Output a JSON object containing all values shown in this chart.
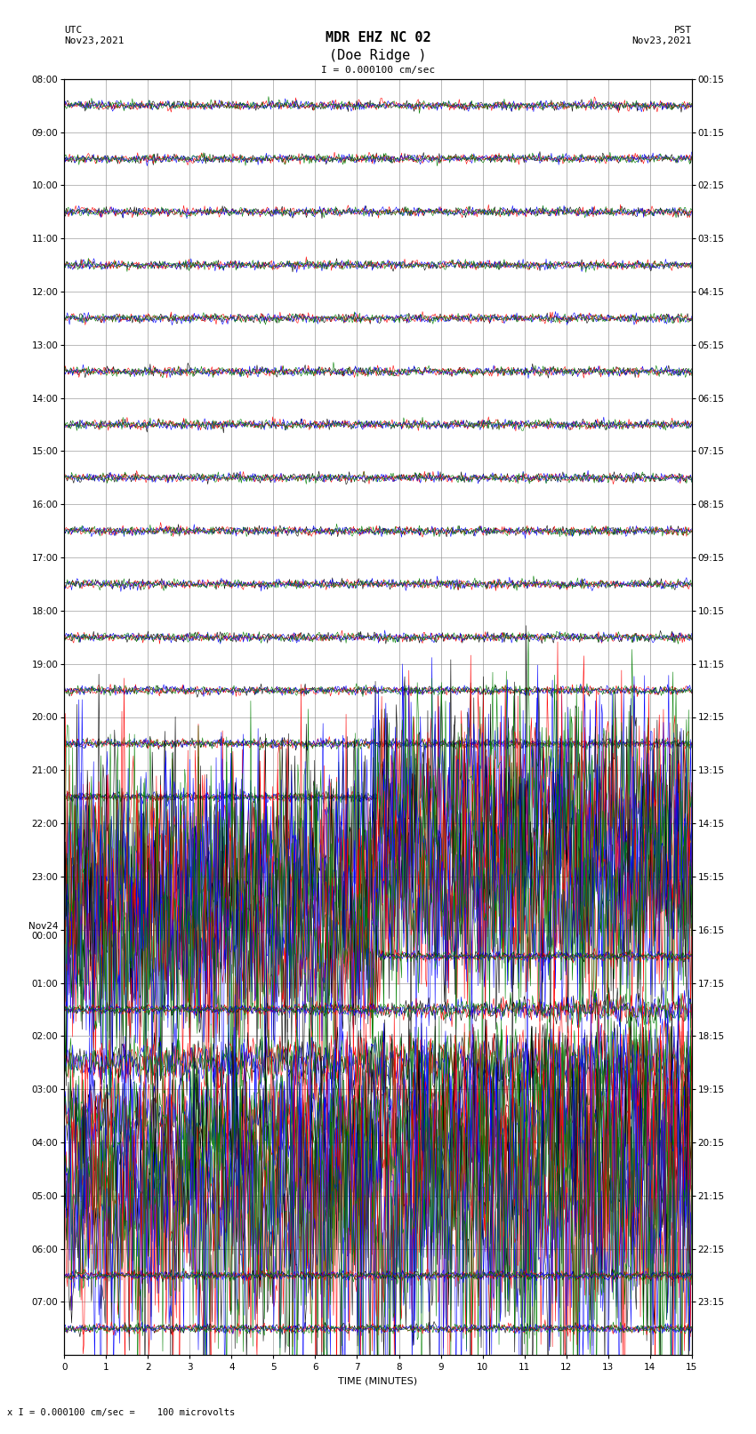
{
  "title_line1": "MDR EHZ NC 02",
  "title_line2": "(Doe Ridge )",
  "scale_label": "I = 0.000100 cm/sec",
  "scale_footnote": "x I = 0.000100 cm/sec =    100 microvolts",
  "utc_label": "UTC\nNov23,2021",
  "pst_label": "PST\nNov23,2021",
  "xlabel": "TIME (MINUTES)",
  "left_times": [
    "08:00",
    "09:00",
    "10:00",
    "11:00",
    "12:00",
    "13:00",
    "14:00",
    "15:00",
    "16:00",
    "17:00",
    "18:00",
    "19:00",
    "20:00",
    "21:00",
    "22:00",
    "23:00",
    "Nov24\n00:00",
    "01:00",
    "02:00",
    "03:00",
    "04:00",
    "05:00",
    "06:00",
    "07:00"
  ],
  "right_times": [
    "00:15",
    "01:15",
    "02:15",
    "03:15",
    "04:15",
    "05:15",
    "06:15",
    "07:15",
    "08:15",
    "09:15",
    "10:15",
    "11:15",
    "12:15",
    "13:15",
    "14:15",
    "15:15",
    "16:15",
    "17:15",
    "18:15",
    "19:15",
    "20:15",
    "21:15",
    "22:15",
    "23:15"
  ],
  "num_rows": 24,
  "minutes_per_row": 15,
  "background_color": "#ffffff",
  "grid_color": "#888888",
  "colors": [
    "black",
    "red",
    "blue",
    "green"
  ],
  "title_fontsize": 11,
  "label_fontsize": 8,
  "tick_fontsize": 7.5
}
